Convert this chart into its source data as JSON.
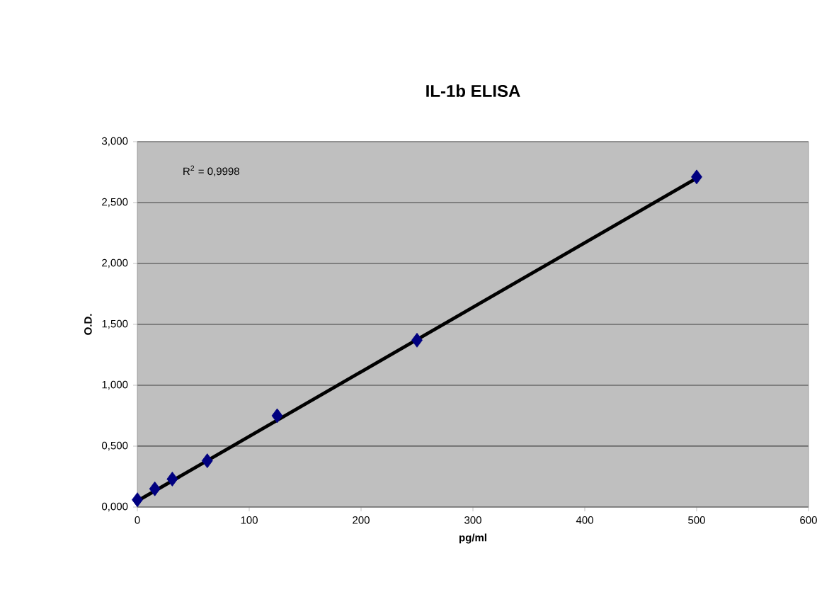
{
  "chart_data": {
    "type": "scatter",
    "title": "IL-1b ELISA",
    "xlabel": "pg/ml",
    "ylabel": "O.D.",
    "x": [
      0,
      15.6,
      31.25,
      62.5,
      125,
      250,
      500
    ],
    "series": [
      {
        "color": "#000080",
        "values": [
          0.06,
          0.15,
          0.23,
          0.38,
          0.75,
          1.37,
          2.71
        ],
        "marker": "diamond"
      },
      {
        "type": "line",
        "color": "#000000",
        "x": [
          0,
          500
        ],
        "values": [
          0.05,
          2.7
        ],
        "marker": "none"
      }
    ],
    "xlim": [
      0,
      600
    ],
    "xticks": [
      0,
      100,
      200,
      300,
      400,
      500,
      600
    ],
    "ylim": [
      0,
      3
    ],
    "yticks": [
      {
        "value": 0,
        "label": "0,000"
      },
      {
        "value": 0.5,
        "label": "0,500"
      },
      {
        "value": 1,
        "label": "1,000"
      },
      {
        "value": 1.5,
        "label": "1,500"
      },
      {
        "value": 2,
        "label": "2,000"
      },
      {
        "value": 2.5,
        "label": "2,500"
      },
      {
        "value": 3,
        "label": "3,000"
      }
    ],
    "grid": "y",
    "annotations": [
      "R$^{2}$ = 0,9998"
    ]
  }
}
